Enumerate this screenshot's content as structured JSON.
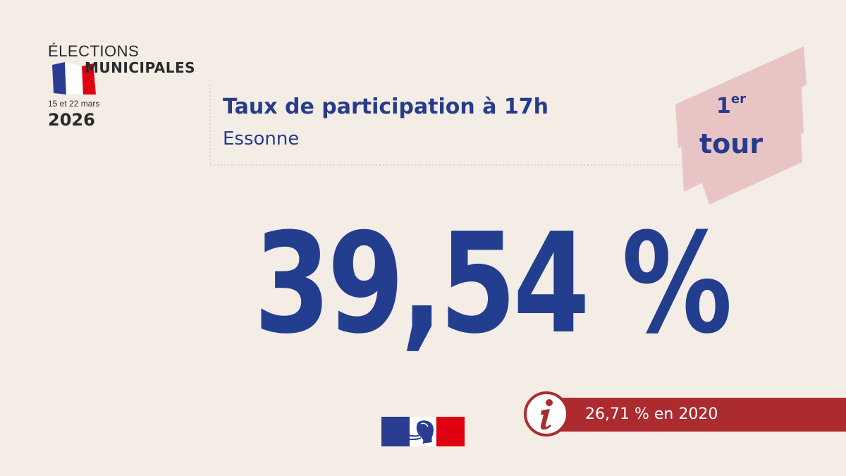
{
  "logo": {
    "line1": "ÉLECTIONS",
    "line2": "MUNICIPALES",
    "dates": "15 et 22 mars",
    "year": "2026"
  },
  "header": {
    "title": "Taux de participation à 17h",
    "subtitle": "Essonne"
  },
  "badge": {
    "ordinal": "1",
    "ordinal_suffix": "er",
    "word": "tour"
  },
  "main_value": "39,54 %",
  "comparison": {
    "icon": "info-icon",
    "text": "26,71 % en 2020"
  },
  "colors": {
    "background": "#f3ede6",
    "primary_blue": "#263b8c",
    "accent_red": "#ac2b2f",
    "badge_pink": "#e8c4c4",
    "flag_blue": "#2a3d91",
    "flag_red": "#e1000f"
  }
}
